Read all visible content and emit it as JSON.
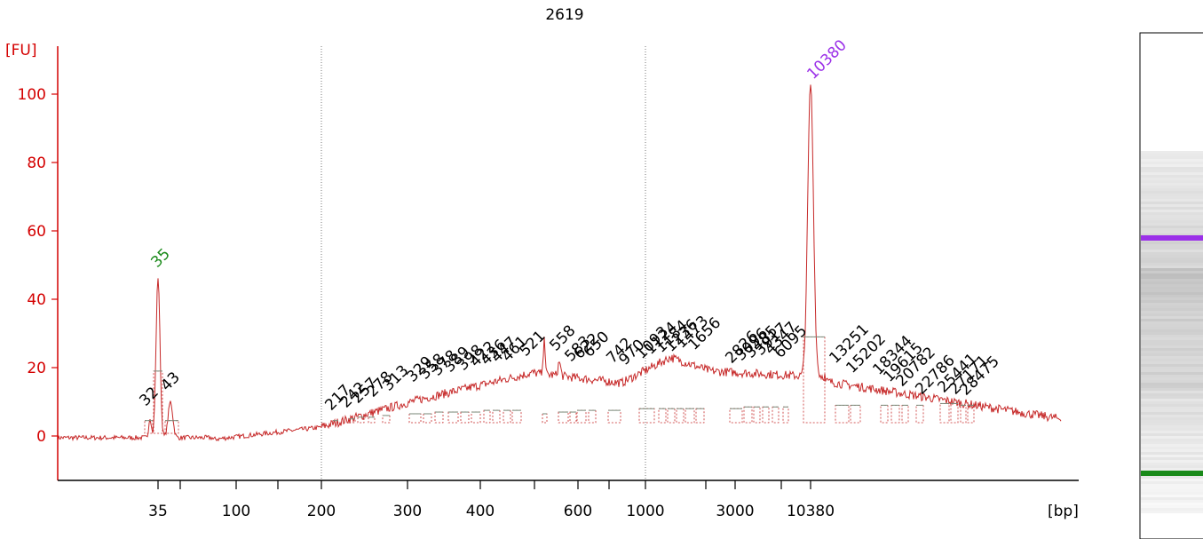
{
  "chart_data": {
    "type": "line",
    "title": "2619",
    "ylabel": "[FU]",
    "xlabel": "[bp]",
    "ylim": [
      -12,
      112
    ],
    "yticks": [
      0,
      20,
      40,
      60,
      80,
      100
    ],
    "x_scale": "ladder (piecewise, non-linear)",
    "xticks": [
      "35",
      "100",
      "200",
      "300",
      "400",
      "600",
      "1000",
      "3000",
      "10380"
    ],
    "grid": false,
    "vertical_reference_lines_bp": [
      200,
      1000
    ],
    "marker_peaks": [
      {
        "label": "35",
        "bp": 35,
        "height_fu": 47,
        "color": "#1a8a1a"
      },
      {
        "label": "10380",
        "bp": 10380,
        "height_fu": 102,
        "color": "#9b30e8"
      }
    ],
    "peak_labels": [
      "32",
      "43",
      "217",
      "242",
      "257",
      "278",
      "313",
      "329",
      "358",
      "378",
      "389",
      "398",
      "422",
      "436",
      "447",
      "461",
      "521",
      "558",
      "583",
      "622",
      "650",
      "742",
      "970",
      "1093",
      "1124",
      "1184",
      "1236",
      "1473",
      "1656",
      "2826",
      "3096",
      "3485",
      "3917",
      "4347",
      "6095",
      "13251",
      "15202",
      "18344",
      "19615",
      "20782",
      "22786",
      "25441",
      "27171",
      "28475"
    ],
    "trace_profile": [
      {
        "bp": 15,
        "fu": 0
      },
      {
        "bp": 30,
        "fu": -1
      },
      {
        "bp": 32,
        "fu": 6
      },
      {
        "bp": 35,
        "fu": 47
      },
      {
        "bp": 43,
        "fu": 11
      },
      {
        "bp": 60,
        "fu": -1
      },
      {
        "bp": 100,
        "fu": -1
      },
      {
        "bp": 200,
        "fu": 3
      },
      {
        "bp": 300,
        "fu": 9
      },
      {
        "bp": 400,
        "fu": 17
      },
      {
        "bp": 521,
        "fu": 19
      },
      {
        "bp": 558,
        "fu": 20
      },
      {
        "bp": 650,
        "fu": 18
      },
      {
        "bp": 742,
        "fu": 15
      },
      {
        "bp": 1124,
        "fu": 23
      },
      {
        "bp": 1656,
        "fu": 20
      },
      {
        "bp": 3000,
        "fu": 18
      },
      {
        "bp": 10380,
        "fu": 102
      },
      {
        "bp": 13251,
        "fu": 16
      },
      {
        "bp": 20000,
        "fu": 10
      },
      {
        "bp": 28475,
        "fu": 7
      },
      {
        "bp": 40000,
        "fu": 4
      }
    ],
    "line_color": "#c62828"
  },
  "gel_lane": {
    "marker_colors": [
      "#9b30e8",
      "#1a8a1a"
    ]
  }
}
